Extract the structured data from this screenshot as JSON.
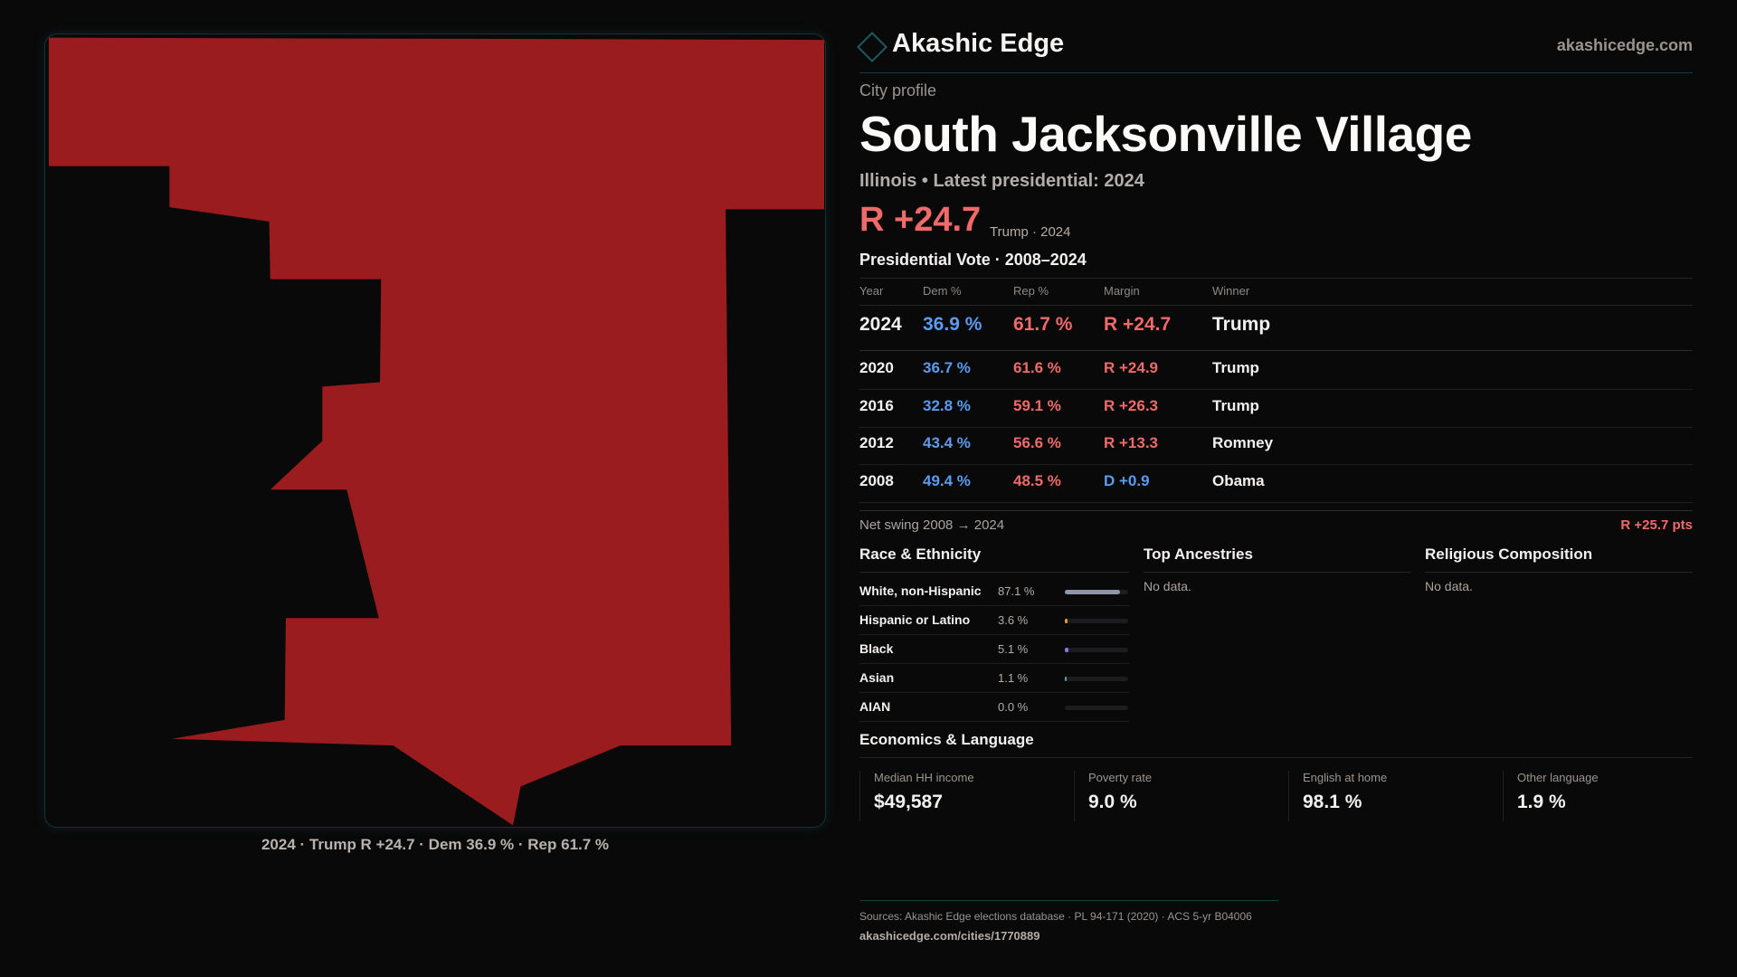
{
  "brand": {
    "name": "Akashic Edge",
    "site": "akashicedge.com"
  },
  "header": {
    "kicker": "City profile",
    "title": "South Jacksonville Village",
    "subtitle": "Illinois • Latest presidential: 2024",
    "margin": "R +24.7",
    "margin_sub": "Trump · 2024"
  },
  "map": {
    "caption": "2024 · Trump R +24.7 · Dem 36.9 % · Rep 61.7 %",
    "fill_color": "#9b1c1f"
  },
  "votes": {
    "heading": "Presidential Vote · 2008–2024",
    "columns": [
      "Year",
      "Dem %",
      "Rep %",
      "Margin",
      "Winner"
    ],
    "rows": [
      {
        "year": "2024",
        "dem": "36.9 %",
        "rep": "61.7 %",
        "margin": "R +24.7",
        "winner": "Trump",
        "party": "R"
      },
      {
        "year": "2020",
        "dem": "36.7 %",
        "rep": "61.6 %",
        "margin": "R +24.9",
        "winner": "Trump",
        "party": "R"
      },
      {
        "year": "2016",
        "dem": "32.8 %",
        "rep": "59.1 %",
        "margin": "R +26.3",
        "winner": "Trump",
        "party": "R"
      },
      {
        "year": "2012",
        "dem": "43.4 %",
        "rep": "56.6 %",
        "margin": "R +13.3",
        "winner": "Romney",
        "party": "R"
      },
      {
        "year": "2008",
        "dem": "49.4 %",
        "rep": "48.5 %",
        "margin": "D +0.9",
        "winner": "Obama",
        "party": "D"
      }
    ],
    "net_swing_label": "Net swing 2008 → 2024",
    "net_swing_value": "R +25.7 pts"
  },
  "race": {
    "heading": "Race & Ethnicity",
    "items": [
      {
        "label": "White, non-Hispanic",
        "value": "87.1 %",
        "pct": 87.1,
        "color": "#8e97a8"
      },
      {
        "label": "Hispanic or Latino",
        "value": "3.6 %",
        "pct": 3.6,
        "color": "#e0a030"
      },
      {
        "label": "Black",
        "value": "5.1 %",
        "pct": 5.1,
        "color": "#8a78e0"
      },
      {
        "label": "Asian",
        "value": "1.1 %",
        "pct": 1.1,
        "color": "#3fb0a0"
      },
      {
        "label": "AIAN",
        "value": "0.0 %",
        "pct": 0,
        "color": "#888888"
      }
    ]
  },
  "ancestries": {
    "heading": "Top Ancestries",
    "empty": "No data."
  },
  "religion": {
    "heading": "Religious Composition",
    "empty": "No data."
  },
  "economics": {
    "heading": "Economics & Language",
    "stats": [
      {
        "label": "Median HH income",
        "value": "$49,587"
      },
      {
        "label": "Poverty rate",
        "value": "9.0 %"
      },
      {
        "label": "English at home",
        "value": "98.1 %"
      },
      {
        "label": "Other language",
        "value": "1.9 %"
      }
    ]
  },
  "footer": {
    "sources": "Sources: Akashic Edge elections database · PL 94-171 (2020) · ACS 5-yr B04006",
    "url": "akashicedge.com/cities/1770889"
  },
  "colors": {
    "dem": "#5b9bf0",
    "rep": "#f06a6a",
    "background": "#0a0909"
  }
}
